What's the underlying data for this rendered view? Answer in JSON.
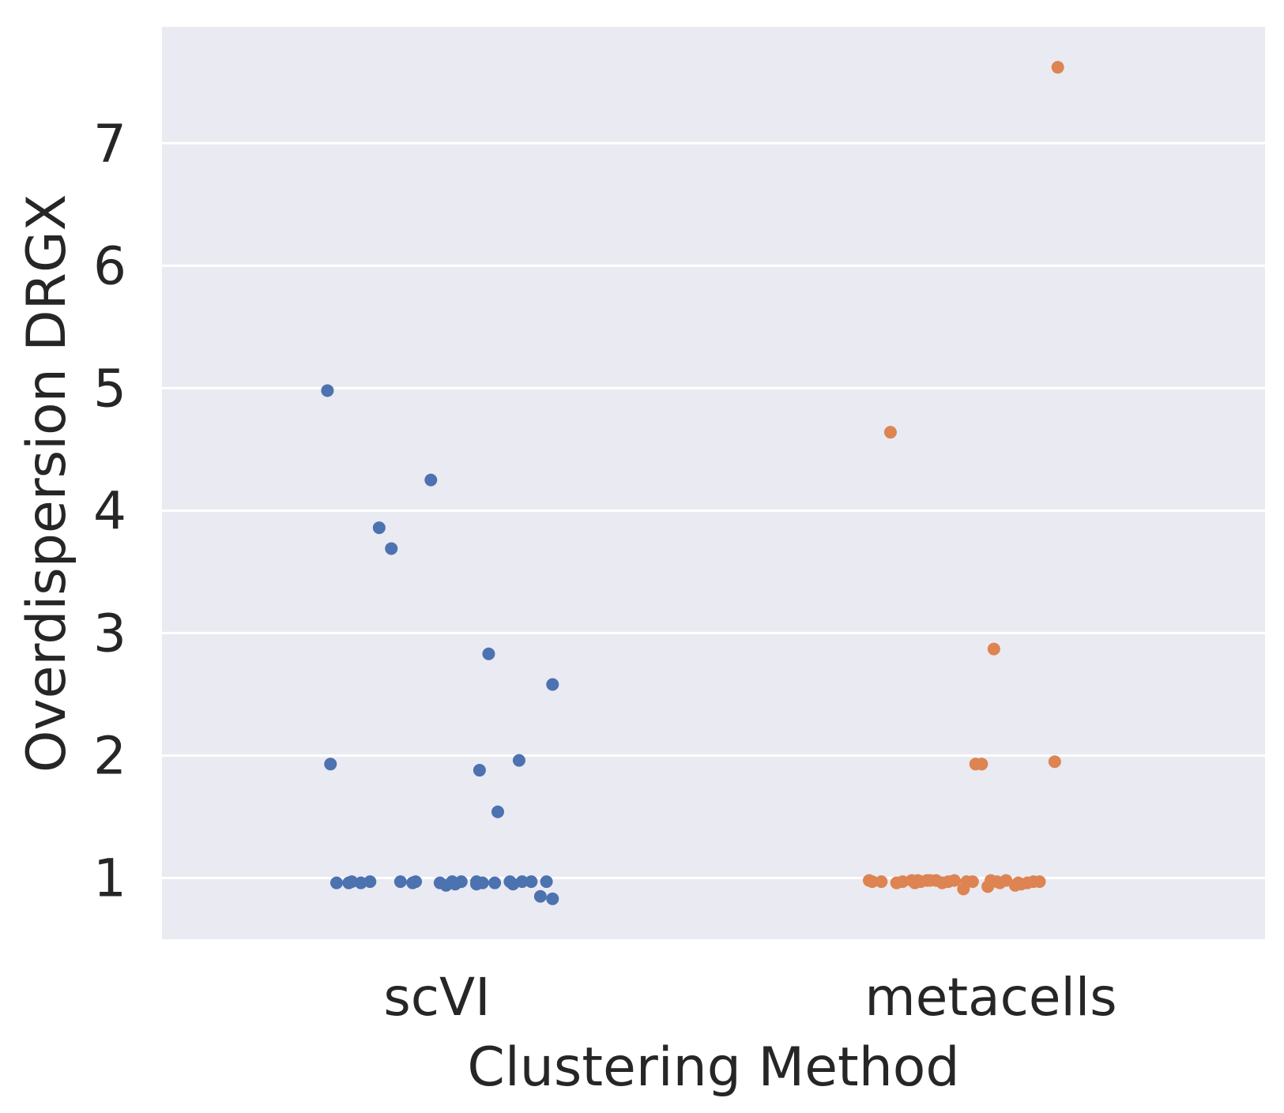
{
  "chart_data": {
    "type": "scatter",
    "title": "",
    "xlabel": "Clustering Method",
    "ylabel": "Overdispersion DRGX",
    "categories": [
      "scVI",
      "metacells"
    ],
    "yticks": [
      "1",
      "2",
      "3",
      "4",
      "5",
      "6",
      "7"
    ],
    "ylim": [
      0.5,
      7.95
    ],
    "grid": true,
    "legend": "none",
    "colors": {
      "background": "#eaeaf2",
      "grid": "#ffffff",
      "text": "#262626"
    },
    "series": [
      {
        "category": "scVI",
        "color": "#4c72b0",
        "points": [
          {
            "jitter": -0.36,
            "y": 4.98
          },
          {
            "jitter": -0.35,
            "y": 1.93
          },
          {
            "jitter": -0.33,
            "y": 0.96
          },
          {
            "jitter": -0.29,
            "y": 0.96
          },
          {
            "jitter": -0.28,
            "y": 0.97
          },
          {
            "jitter": -0.25,
            "y": 0.96
          },
          {
            "jitter": -0.22,
            "y": 0.97
          },
          {
            "jitter": -0.19,
            "y": 3.86
          },
          {
            "jitter": -0.15,
            "y": 3.69
          },
          {
            "jitter": -0.12,
            "y": 0.97
          },
          {
            "jitter": -0.08,
            "y": 0.96
          },
          {
            "jitter": -0.07,
            "y": 0.97
          },
          {
            "jitter": -0.02,
            "y": 4.25
          },
          {
            "jitter": 0.01,
            "y": 0.96
          },
          {
            "jitter": 0.03,
            "y": 0.94
          },
          {
            "jitter": 0.05,
            "y": 0.97
          },
          {
            "jitter": 0.06,
            "y": 0.95
          },
          {
            "jitter": 0.08,
            "y": 0.97
          },
          {
            "jitter": 0.13,
            "y": 0.95
          },
          {
            "jitter": 0.13,
            "y": 0.97
          },
          {
            "jitter": 0.14,
            "y": 1.88
          },
          {
            "jitter": 0.15,
            "y": 0.96
          },
          {
            "jitter": 0.17,
            "y": 2.83
          },
          {
            "jitter": 0.19,
            "y": 0.96
          },
          {
            "jitter": 0.2,
            "y": 1.54
          },
          {
            "jitter": 0.24,
            "y": 0.97
          },
          {
            "jitter": 0.25,
            "y": 0.95
          },
          {
            "jitter": 0.27,
            "y": 1.96
          },
          {
            "jitter": 0.28,
            "y": 0.97
          },
          {
            "jitter": 0.31,
            "y": 0.97
          },
          {
            "jitter": 0.34,
            "y": 0.85
          },
          {
            "jitter": 0.36,
            "y": 0.97
          },
          {
            "jitter": 0.38,
            "y": 2.58
          },
          {
            "jitter": 0.38,
            "y": 0.83
          }
        ]
      },
      {
        "category": "metacells",
        "color": "#dd8452",
        "points": [
          {
            "jitter": -0.4,
            "y": 0.98
          },
          {
            "jitter": -0.39,
            "y": 0.97
          },
          {
            "jitter": -0.36,
            "y": 0.97
          },
          {
            "jitter": -0.33,
            "y": 4.64
          },
          {
            "jitter": -0.31,
            "y": 0.96
          },
          {
            "jitter": -0.29,
            "y": 0.97
          },
          {
            "jitter": -0.26,
            "y": 0.98
          },
          {
            "jitter": -0.25,
            "y": 0.96
          },
          {
            "jitter": -0.24,
            "y": 0.98
          },
          {
            "jitter": -0.23,
            "y": 0.97
          },
          {
            "jitter": -0.21,
            "y": 0.98
          },
          {
            "jitter": -0.2,
            "y": 0.98
          },
          {
            "jitter": -0.18,
            "y": 0.98
          },
          {
            "jitter": -0.16,
            "y": 0.96
          },
          {
            "jitter": -0.14,
            "y": 0.97
          },
          {
            "jitter": -0.12,
            "y": 0.98
          },
          {
            "jitter": -0.09,
            "y": 0.91
          },
          {
            "jitter": -0.08,
            "y": 0.97
          },
          {
            "jitter": -0.06,
            "y": 0.97
          },
          {
            "jitter": -0.05,
            "y": 1.93
          },
          {
            "jitter": -0.03,
            "y": 1.93
          },
          {
            "jitter": -0.01,
            "y": 0.93
          },
          {
            "jitter": 0.0,
            "y": 0.98
          },
          {
            "jitter": 0.01,
            "y": 2.87
          },
          {
            "jitter": 0.02,
            "y": 0.97
          },
          {
            "jitter": 0.03,
            "y": 0.96
          },
          {
            "jitter": 0.05,
            "y": 0.98
          },
          {
            "jitter": 0.08,
            "y": 0.94
          },
          {
            "jitter": 0.09,
            "y": 0.96
          },
          {
            "jitter": 0.1,
            "y": 0.95
          },
          {
            "jitter": 0.12,
            "y": 0.96
          },
          {
            "jitter": 0.14,
            "y": 0.97
          },
          {
            "jitter": 0.16,
            "y": 0.97
          },
          {
            "jitter": 0.21,
            "y": 1.95
          },
          {
            "jitter": 0.22,
            "y": 7.62
          }
        ]
      }
    ]
  }
}
